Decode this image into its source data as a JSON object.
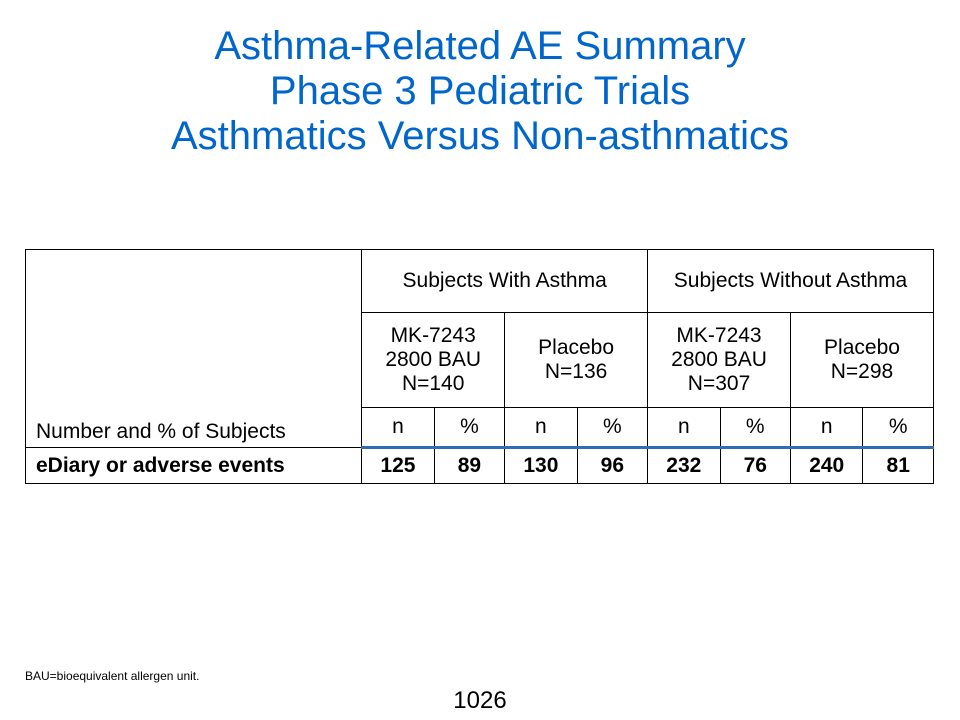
{
  "title": {
    "line1": "Asthma-Related AE Summary",
    "line2": "Phase 3 Pediatric Trials",
    "line3": "Asthmatics Versus Non-asthmatics"
  },
  "table": {
    "corner_label": "Number and % of Subjects",
    "groups": [
      "Subjects With Asthma",
      "Subjects Without Asthma"
    ],
    "arms": [
      {
        "line1": "MK-7243",
        "line2": "2800 BAU",
        "line3": "N=140"
      },
      {
        "line1": "Placebo",
        "line2": "N=136"
      },
      {
        "line1": "MK-7243",
        "line2": "2800 BAU",
        "line3": "N=307"
      },
      {
        "line1": "Placebo",
        "line2": "N=298"
      }
    ],
    "sub_headers": [
      "n",
      "%",
      "n",
      "%",
      "n",
      "%",
      "n",
      "%"
    ],
    "rows": [
      {
        "label": "eDiary or adverse events",
        "values": [
          "125",
          "89",
          "130",
          "96",
          "232",
          "76",
          "240",
          "81"
        ]
      }
    ]
  },
  "footnote": "BAU=bioequivalent allergen unit.",
  "page_number": "1026"
}
